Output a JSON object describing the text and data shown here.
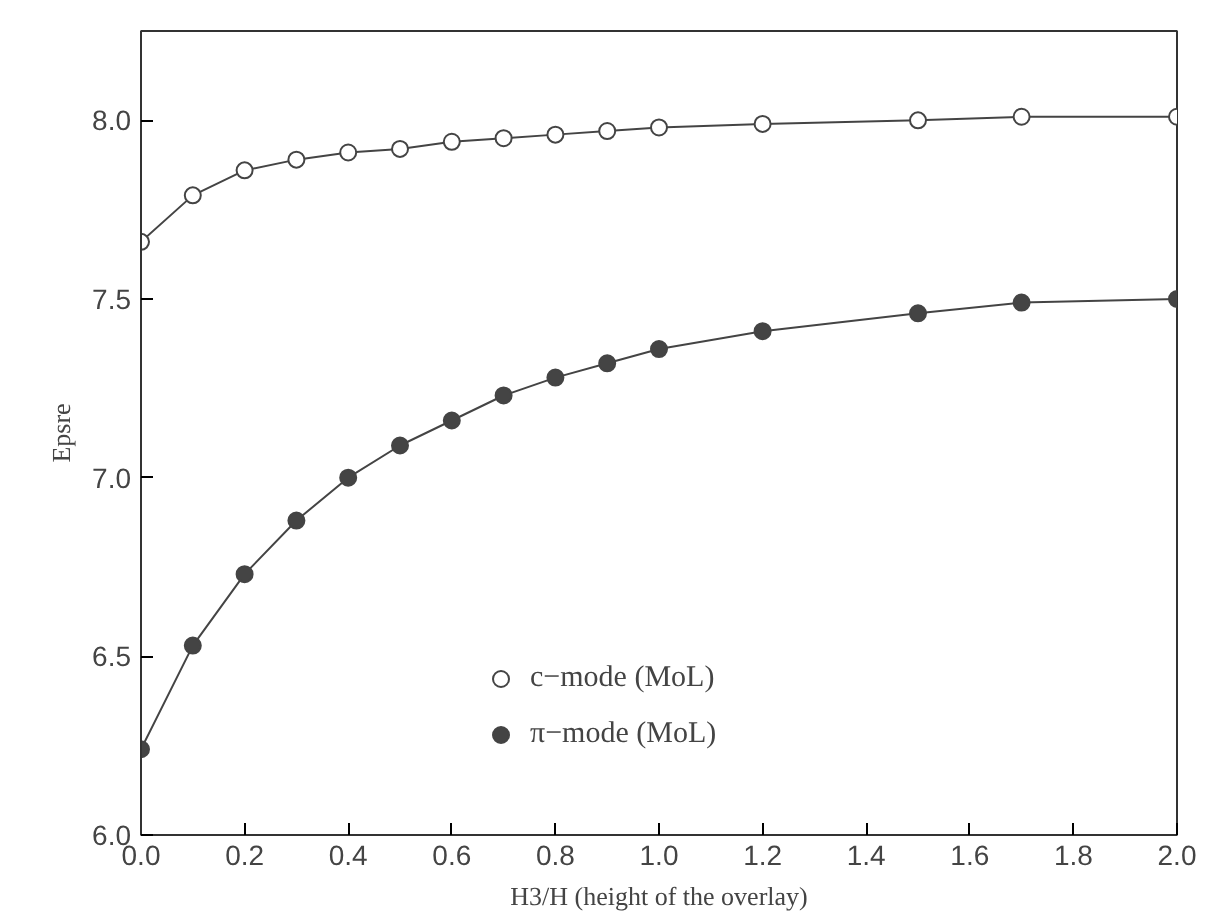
{
  "chart_data": {
    "type": "line",
    "xlabel": "H3/H (height of the overlay)",
    "ylabel": "Epsre",
    "xlim": [
      0,
      2
    ],
    "ylim": [
      6,
      8.25
    ],
    "xticks": [
      {
        "value": 0,
        "label": "0.0"
      },
      0.2,
      0.4,
      0.6,
      0.8,
      {
        "value": 1,
        "label": "1.0"
      },
      1.2,
      1.4,
      1.6,
      1.8,
      {
        "value": 2,
        "label": "2.0"
      }
    ],
    "yticks": [
      {
        "value": 6,
        "label": "6.0"
      },
      6.5,
      {
        "value": 7,
        "label": "7.0"
      },
      7.5,
      {
        "value": 8,
        "label": "8.0"
      }
    ],
    "x": [
      0,
      0.1,
      0.2,
      0.3,
      0.4,
      0.5,
      0.6,
      0.7,
      0.8,
      0.9,
      1.0,
      1.2,
      1.5,
      1.7,
      2.0
    ],
    "series": [
      {
        "name": "c−mode (MoL)",
        "color": "#ffffff",
        "values": [
          7.66,
          7.79,
          7.86,
          7.89,
          7.91,
          7.92,
          7.94,
          7.95,
          7.96,
          7.97,
          7.98,
          7.99,
          8.0,
          8.01,
          8.01
        ]
      },
      {
        "name": "π−mode (MoL)",
        "color": "#444444",
        "values": [
          6.24,
          6.53,
          6.73,
          6.88,
          7.0,
          7.09,
          7.16,
          7.23,
          7.28,
          7.32,
          7.36,
          7.41,
          7.46,
          7.49,
          7.5
        ]
      }
    ],
    "marker": "circle",
    "line_style": "solid",
    "grid": false,
    "legend": "bottom"
  }
}
